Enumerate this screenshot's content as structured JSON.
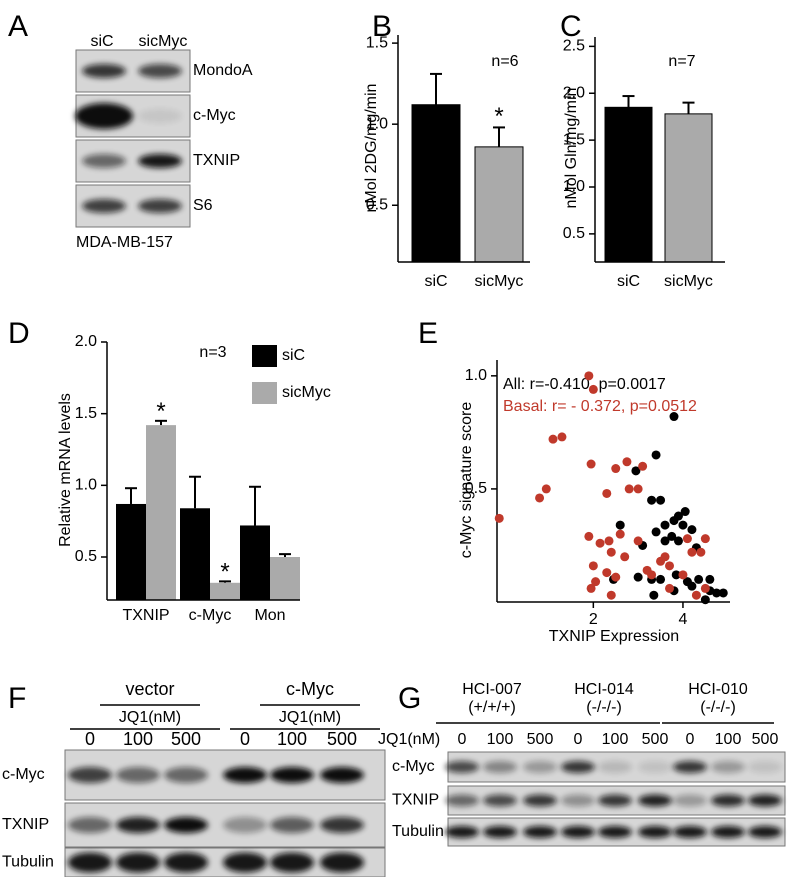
{
  "panel_labels": [
    "A",
    "B",
    "C",
    "D",
    "E",
    "F",
    "G"
  ],
  "blot_a": {
    "lanes": [
      "siC",
      "sicMyc"
    ],
    "bands": [
      "MondoA",
      "c-Myc",
      "TXNIP",
      "S6"
    ],
    "cell_line": "MDA-MB-157"
  },
  "chart_data": [
    {
      "type": "bar",
      "ylabel": "nMol 2DG/mg/min",
      "categories": [
        "siC",
        "sicMyc"
      ],
      "values": [
        1.12,
        0.86
      ],
      "errors": [
        0.19,
        0.12
      ],
      "colors": [
        "#000000",
        "#aaaaaa"
      ],
      "ylim": [
        0.15,
        1.55
      ],
      "yticks": [
        0.5,
        {
          "value": 1,
          "label": "1.0"
        },
        1.5
      ],
      "annotations": [
        "n=6",
        "*"
      ]
    },
    {
      "type": "bar",
      "ylabel": "nMol Gln/mg/min",
      "categories": [
        "siC",
        "sicMyc"
      ],
      "values": [
        1.85,
        1.78
      ],
      "errors": [
        0.12,
        0.12
      ],
      "colors": [
        "#000000",
        "#aaaaaa"
      ],
      "ylim": [
        0.2,
        2.6
      ],
      "yticks": [
        0.5,
        {
          "value": 1,
          "label": "1.0"
        },
        1.5,
        {
          "value": 2,
          "label": "2.0"
        },
        2.5
      ],
      "annotations": [
        "n=7"
      ]
    },
    {
      "type": "grouped-bar",
      "ylabel": "Relative mRNA levels",
      "categories": [
        "TXNIP",
        "c-Myc",
        "Mon"
      ],
      "series": [
        {
          "name": "siC",
          "color": "#000000",
          "values": [
            0.87,
            0.84,
            0.72
          ],
          "errors": [
            0.11,
            0.22,
            0.27
          ]
        },
        {
          "name": "sicMyc",
          "color": "#aaaaaa",
          "values": [
            1.42,
            0.32,
            0.5
          ],
          "errors": [
            0.03,
            0.01,
            0.02
          ]
        }
      ],
      "ylim": [
        0.2,
        2.0
      ],
      "yticks": [
        0.5,
        {
          "value": 1,
          "label": "1.0"
        },
        1.5,
        {
          "value": 2,
          "label": "2.0"
        }
      ],
      "annotations": [
        "n=3",
        "*",
        "*"
      ]
    },
    {
      "type": "scatter",
      "ylabel": "c-Myc signature score",
      "xlabel": "TXNIP Expression",
      "xlim": [
        -0.15,
        5.05
      ],
      "ylim": [
        0,
        1.07
      ],
      "xticks": [
        2,
        4
      ],
      "yticks": [
        0.5,
        {
          "value": 1,
          "label": "1.0"
        }
      ],
      "series": [
        {
          "name": "All: r=-0.410, p=0.0017",
          "color": "#000000",
          "x": [
            3.8,
            3.4,
            2.95,
            2.6,
            3.3,
            3.5,
            3.8,
            3.6,
            3.9,
            4.05,
            3.4,
            3.75,
            4.0,
            4.2,
            3.1,
            3.6,
            3.9,
            4.3,
            2.45,
            3.0,
            3.3,
            3.5,
            3.85,
            4.1,
            4.35,
            4.6,
            3.8,
            4.2,
            4.6,
            4.75,
            4.5,
            4.9,
            3.35
          ],
          "values": [
            0.82,
            0.65,
            0.58,
            0.34,
            0.45,
            0.45,
            0.36,
            0.34,
            0.38,
            0.4,
            0.31,
            0.29,
            0.34,
            0.32,
            0.25,
            0.27,
            0.27,
            0.24,
            0.1,
            0.11,
            0.1,
            0.1,
            0.12,
            0.09,
            0.1,
            0.1,
            0.05,
            0.07,
            0.05,
            0.04,
            0.01,
            0.04,
            0.03
          ]
        },
        {
          "name": "Basal: r= - 0.372, p=0.0512",
          "color": "#c0392b",
          "x": [
            -0.1,
            0.8,
            0.95,
            1.1,
            1.3,
            1.9,
            2.0,
            1.95,
            2.5,
            2.75,
            3.1,
            2.3,
            2.8,
            3.0,
            1.9,
            2.15,
            2.35,
            2.6,
            3.0,
            2.4,
            2.7,
            2.0,
            2.3,
            2.5,
            1.95,
            2.05,
            3.2,
            3.3,
            3.5,
            3.6,
            3.7,
            4.1,
            4.2,
            4.4,
            4.5,
            4.3,
            3.7,
            2.4,
            4.0,
            4.5
          ],
          "values": [
            0.37,
            0.46,
            0.5,
            0.72,
            0.73,
            1.0,
            0.94,
            0.61,
            0.59,
            0.62,
            0.6,
            0.48,
            0.5,
            0.5,
            0.29,
            0.26,
            0.27,
            0.3,
            0.27,
            0.22,
            0.2,
            0.16,
            0.13,
            0.11,
            0.06,
            0.09,
            0.14,
            0.12,
            0.18,
            0.2,
            0.16,
            0.28,
            0.22,
            0.22,
            0.28,
            0.03,
            0.06,
            0.03,
            0.12,
            0.06
          ]
        }
      ]
    }
  ],
  "blot_f": {
    "groups": [
      "vector",
      "c-Myc"
    ],
    "treatment": "JQ1(nM)",
    "doses": [
      0,
      100,
      500,
      0,
      100,
      500
    ],
    "bands": [
      "c-Myc",
      "TXNIP",
      "Tubulin"
    ]
  },
  "blot_g": {
    "groups": [
      {
        "name": "HCI-007",
        "status": "(+/+/+)"
      },
      {
        "name": "HCI-014",
        "status": "(-/-/-)"
      },
      {
        "name": "HCI-010",
        "status": "(-/-/-)"
      }
    ],
    "treatment": "JQ1(nM)",
    "doses": [
      0,
      100,
      500,
      0,
      100,
      500,
      0,
      100,
      500
    ],
    "bands": [
      "c-Myc",
      "TXNIP",
      "Tubulin"
    ]
  }
}
